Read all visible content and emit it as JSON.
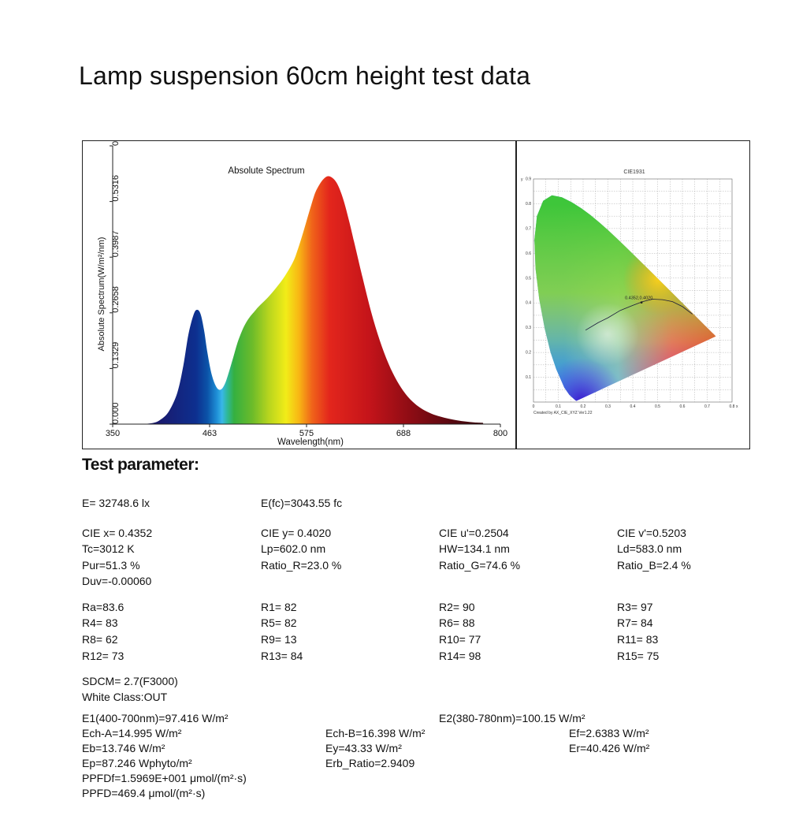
{
  "page": {
    "title": "Lamp suspension 60cm height test data"
  },
  "chart_data": [
    {
      "type": "area",
      "title": "Absolute Spectrum",
      "xlabel": "Wavelength(nm)",
      "ylabel": "Absolute Spectrum(W/m²/nm)",
      "xlim": [
        350,
        800
      ],
      "ylim": [
        0,
        0.6644
      ],
      "x_tick_labels": [
        "350",
        "463",
        "575",
        "688",
        "800"
      ],
      "y_tick_labels": [
        "0.000",
        "0.1329",
        "0.2658",
        "0.3987",
        "0.5316",
        "0.6644"
      ],
      "x": [
        380,
        395,
        405,
        415,
        425,
        432,
        438,
        444,
        448,
        452,
        456,
        460,
        465,
        470,
        475,
        480,
        485,
        490,
        495,
        500,
        505,
        510,
        515,
        520,
        530,
        540,
        550,
        560,
        565,
        570,
        575,
        580,
        585,
        590,
        595,
        600,
        605,
        610,
        615,
        620,
        625,
        630,
        640,
        650,
        660,
        670,
        680,
        690,
        700,
        710,
        720,
        730,
        740,
        750,
        760,
        770,
        780
      ],
      "values": [
        0.0,
        0.002,
        0.01,
        0.03,
        0.075,
        0.14,
        0.215,
        0.262,
        0.273,
        0.263,
        0.225,
        0.17,
        0.118,
        0.09,
        0.082,
        0.095,
        0.125,
        0.16,
        0.195,
        0.222,
        0.243,
        0.258,
        0.27,
        0.282,
        0.302,
        0.326,
        0.354,
        0.39,
        0.418,
        0.45,
        0.485,
        0.52,
        0.552,
        0.572,
        0.586,
        0.592,
        0.588,
        0.576,
        0.553,
        0.52,
        0.48,
        0.437,
        0.35,
        0.268,
        0.2,
        0.145,
        0.103,
        0.072,
        0.05,
        0.035,
        0.025,
        0.018,
        0.013,
        0.009,
        0.006,
        0.004,
        0.003
      ]
    },
    {
      "type": "scatter",
      "title": "CIE1931",
      "xlabel": "x",
      "ylabel": "y",
      "xlim": [
        0,
        0.8
      ],
      "ylim": [
        0,
        0.9
      ],
      "x_tick_labels": [
        "0",
        "0.1",
        "0.2",
        "0.3",
        "0.4",
        "0.5",
        "0.6",
        "0.7",
        "0.8"
      ],
      "y_tick_labels": [
        "0.1",
        "0.2",
        "0.3",
        "0.4",
        "0.5",
        "0.6",
        "0.7",
        "0.8",
        "0.9"
      ],
      "point": {
        "label": "0.4352,0.4020",
        "x": 0.4352,
        "y": 0.402
      },
      "footer": "Created by AX_CIE_XYZ Ver1.22"
    }
  ],
  "section": {
    "title": "Test parameter:"
  },
  "params": {
    "e_lx": "E=  32748.6 lx",
    "e_fc": "E(fc)=3043.55 fc",
    "cie_x": "CIE x= 0.4352",
    "cie_y": "CIE y= 0.4020",
    "cie_u": "CIE u'=0.2504",
    "cie_v": "CIE v'=0.5203",
    "tc": "Tc=3012 K",
    "lp": "Lp=602.0 nm",
    "hw": "HW=134.1 nm",
    "ld": "Ld=583.0 nm",
    "pur": "Pur=51.3 %",
    "ratio_r": "Ratio_R=23.0 %",
    "ratio_g": "Ratio_G=74.6 %",
    "ratio_b": "Ratio_B=2.4 %",
    "duv": "Duv=-0.00060",
    "ra": "Ra=83.6",
    "r1": "R1= 82",
    "r2": "R2= 90",
    "r3": "R3= 97",
    "r4": "R4= 83",
    "r5": "R5= 82",
    "r6": "R6= 88",
    "r7": "R7= 84",
    "r8": "R8= 62",
    "r9": "R9= 13",
    "r10": "R10= 77",
    "r11": "R11= 83",
    "r12": "R12= 73",
    "r13": "R13= 84",
    "r14": "R14= 98",
    "r15": "R15= 75",
    "sdcm": "SDCM= 2.7(F3000)",
    "white_class": "White Class:OUT",
    "e1": "E1(400-700nm)=97.416 W/m²",
    "e2": "E2(380-780nm)=100.15 W/m²",
    "ech_a": "Ech-A=14.995 W/m²",
    "ech_b": "Ech-B=16.398 W/m²",
    "ef": "Ef=2.6383 W/m²",
    "eb": "Eb=13.746 W/m²",
    "ey": "Ey=43.33 W/m²",
    "er": "Er=40.426 W/m²",
    "ep": "Ep=87.246 Wphyto/m²",
    "erb": "Erb_Ratio=2.9409",
    "ppfdf": "PPFDf=1.5969E+001 μmol/(m²·s)",
    "ppfd": "PPFD=469.4 μmol/(m²·s)"
  }
}
